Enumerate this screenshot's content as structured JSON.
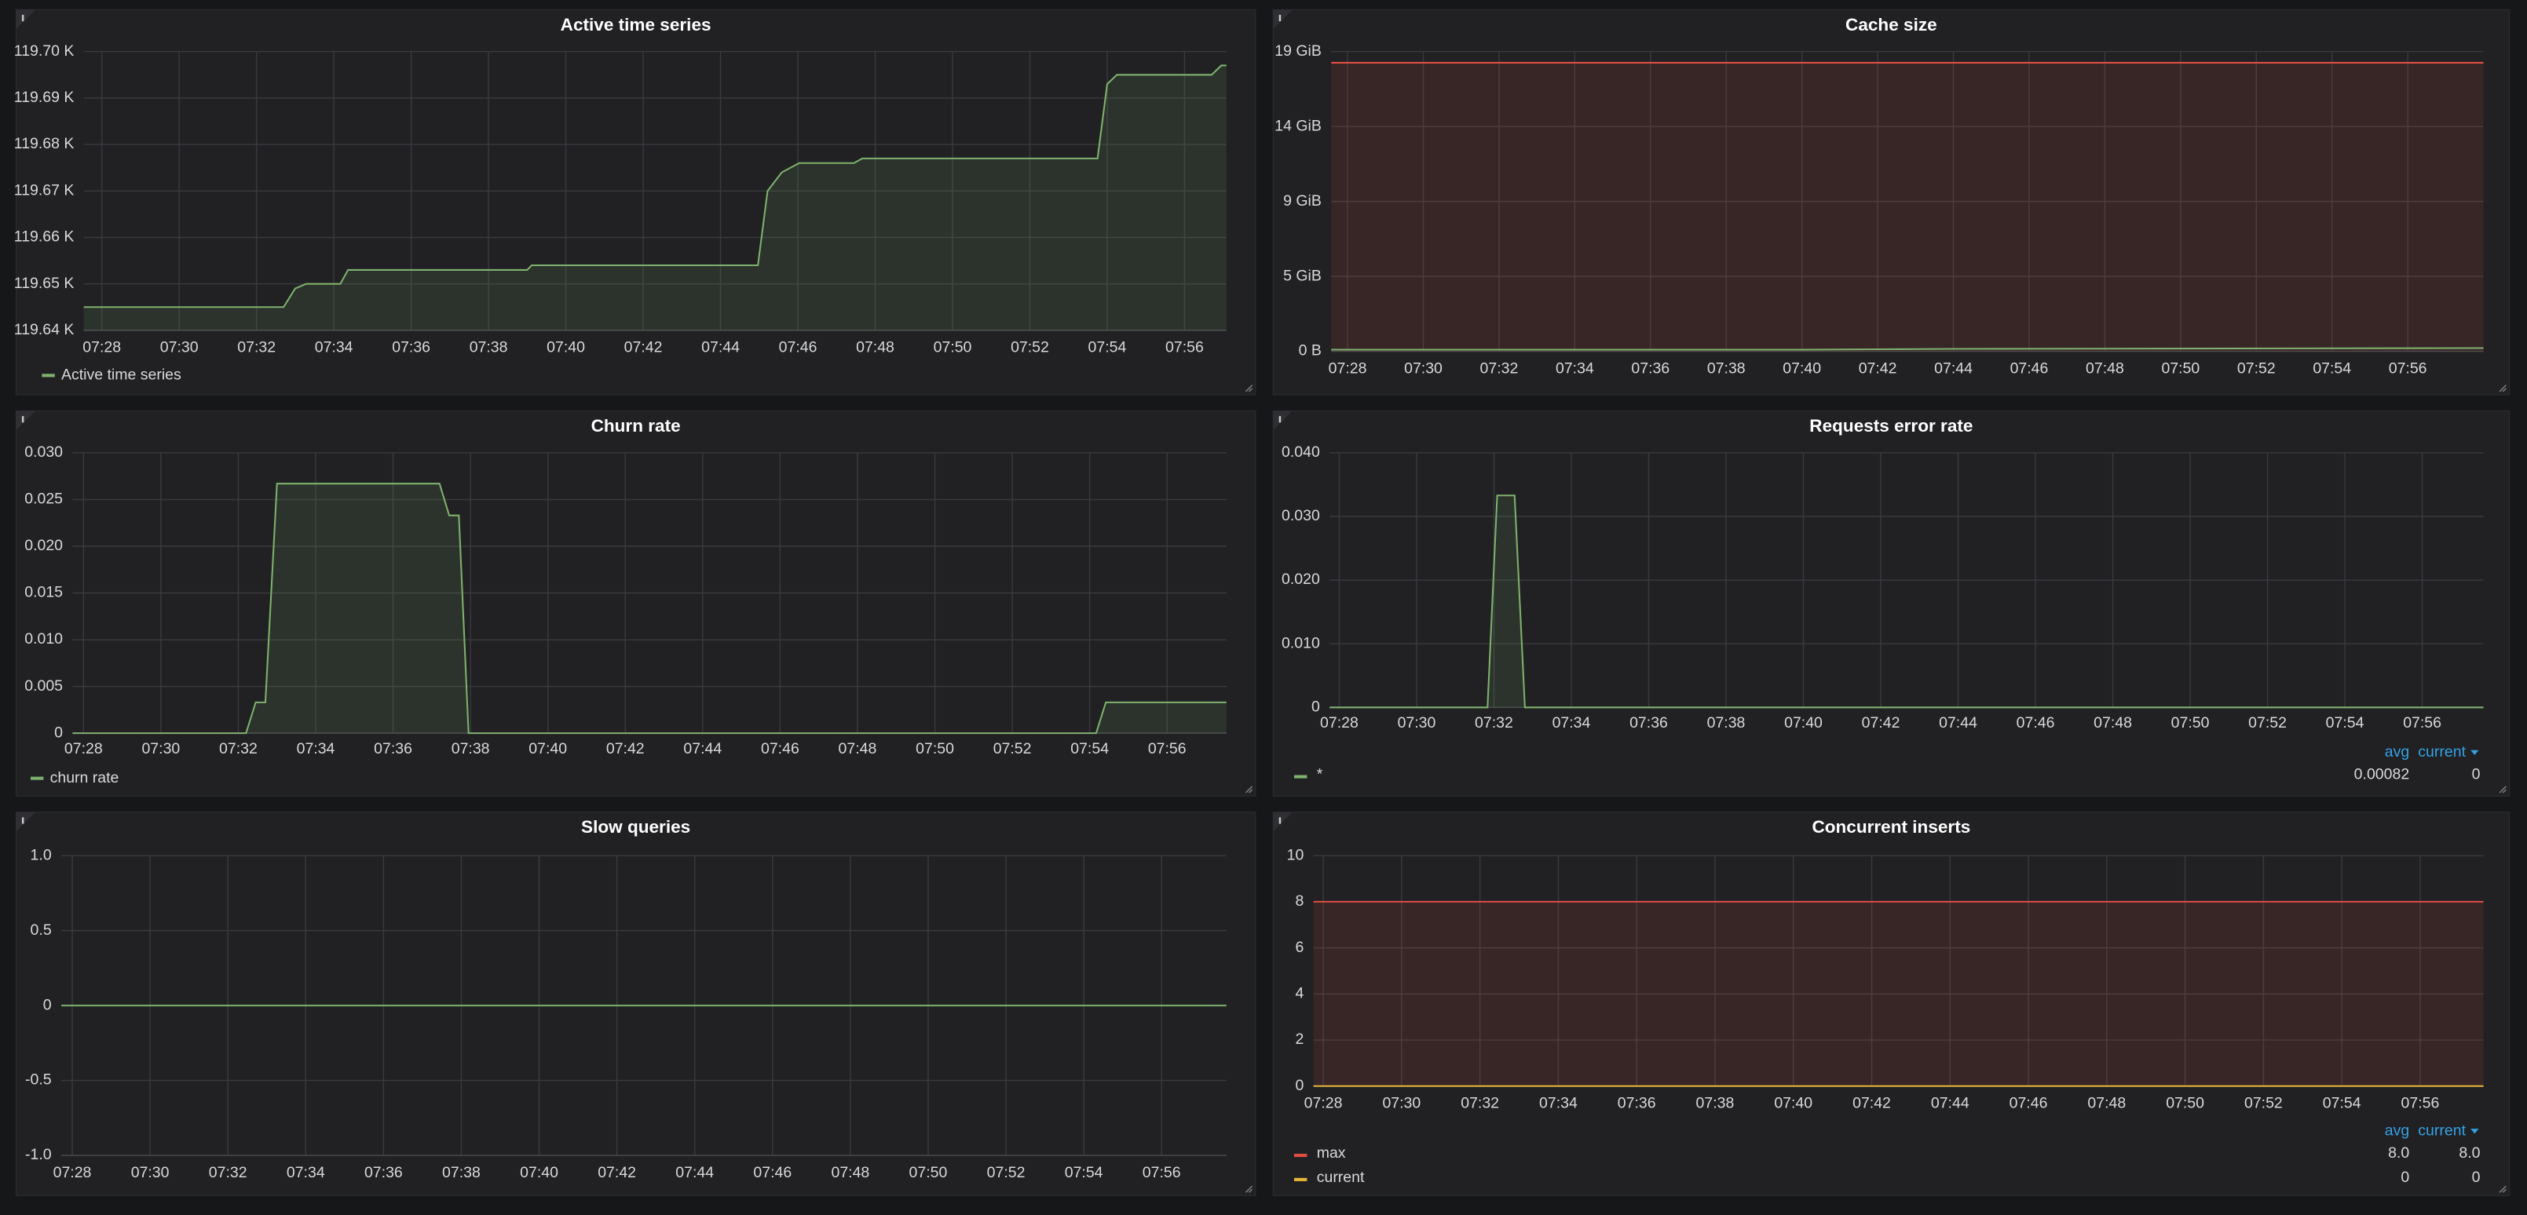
{
  "chart_data": [
    {
      "type": "line",
      "title": "Active time series",
      "xlim": [
        "07:27:32",
        "07:57:05"
      ],
      "xticks": [
        "07:28",
        "07:30",
        "07:32",
        "07:34",
        "07:36",
        "07:38",
        "07:40",
        "07:42",
        "07:44",
        "07:46",
        "07:48",
        "07:50",
        "07:52",
        "07:54",
        "07:56"
      ],
      "ylim": [
        119.64,
        119.7
      ],
      "yticks": [
        {
          "value": 119.64,
          "label": "119.64 K"
        },
        {
          "value": 119.65,
          "label": "119.65 K"
        },
        {
          "value": 119.66,
          "label": "119.66 K"
        },
        {
          "value": 119.67,
          "label": "119.67 K"
        },
        {
          "value": 119.68,
          "label": "119.68 K"
        },
        {
          "value": 119.69,
          "label": "119.69 K"
        },
        {
          "value": 119.7,
          "label": "119.70 K"
        }
      ],
      "grid": true,
      "legend": {
        "style": "list"
      },
      "series": [
        {
          "name": "Active time series",
          "color": "#7eb26d",
          "fill": true,
          "x": [
            "07:27:32",
            "07:32:42",
            "07:33:00",
            "07:33:17",
            "07:34:10",
            "07:34:22",
            "07:39:00",
            "07:39:07",
            "07:44:58",
            "07:45:13",
            "07:45:35",
            "07:46:02",
            "07:47:27",
            "07:47:40",
            "07:53:45",
            "07:54:00",
            "07:54:15",
            "07:56:42",
            "07:56:57",
            "07:57:05"
          ],
          "values": [
            119.645,
            119.645,
            119.649,
            119.65,
            119.65,
            119.653,
            119.653,
            119.654,
            119.654,
            119.67,
            119.674,
            119.676,
            119.676,
            119.677,
            119.677,
            119.693,
            119.695,
            119.695,
            119.697,
            119.697
          ]
        }
      ]
    },
    {
      "type": "line",
      "title": "Cache size",
      "xlim": [
        "07:27:34",
        "07:58:00"
      ],
      "xticks": [
        "07:28",
        "07:30",
        "07:32",
        "07:34",
        "07:36",
        "07:38",
        "07:40",
        "07:42",
        "07:44",
        "07:46",
        "07:48",
        "07:50",
        "07:52",
        "07:54",
        "07:56"
      ],
      "ylim": [
        0,
        18.8
      ],
      "yticks": [
        {
          "value": 0,
          "label": "0 B"
        },
        {
          "value": 4.7,
          "label": "5 GiB"
        },
        {
          "value": 9.4,
          "label": "9 GiB"
        },
        {
          "value": 14.1,
          "label": "14 GiB"
        },
        {
          "value": 18.8,
          "label": "19 GiB"
        }
      ],
      "grid": true,
      "series": [
        {
          "color": "#e24d42",
          "fill": true,
          "x": [
            "07:27:34",
            "07:58:00"
          ],
          "values": [
            18.1,
            18.1
          ]
        },
        {
          "color": "#7eb26d",
          "fill": false,
          "x": [
            "07:27:34",
            "07:40",
            "07:44",
            "07:58:00"
          ],
          "values": [
            0.1,
            0.1,
            0.15,
            0.2
          ]
        }
      ]
    },
    {
      "type": "line",
      "title": "Churn rate",
      "xlim": [
        "07:27:43",
        "07:57:32"
      ],
      "xticks": [
        "07:28",
        "07:30",
        "07:32",
        "07:34",
        "07:36",
        "07:38",
        "07:40",
        "07:42",
        "07:44",
        "07:46",
        "07:48",
        "07:50",
        "07:52",
        "07:54",
        "07:56"
      ],
      "ylim": [
        0,
        0.03
      ],
      "yticks": [
        0,
        0.005,
        {
          "value": 0.01,
          "label": "0.010"
        },
        0.015,
        {
          "value": 0.02,
          "label": "0.020"
        },
        0.025,
        {
          "value": 0.03,
          "label": "0.030"
        }
      ],
      "grid": true,
      "legend": {
        "style": "list"
      },
      "series": [
        {
          "name": "churn rate",
          "color": "#7eb26d",
          "fill": true,
          "x": [
            "07:27:43",
            "07:32:12",
            "07:32:27",
            "07:32:42",
            "07:33:00",
            "07:37:12",
            "07:37:27",
            "07:37:42",
            "07:37:57",
            "07:54:10",
            "07:54:25",
            "07:57:32"
          ],
          "values": [
            0,
            0,
            0.0033,
            0.0033,
            0.0267,
            0.0267,
            0.0233,
            0.0233,
            0,
            0,
            0.0033,
            0.0033
          ]
        }
      ]
    },
    {
      "type": "line",
      "title": "Requests error rate",
      "xlim": [
        "07:27:45",
        "07:57:35"
      ],
      "xticks": [
        "07:28",
        "07:30",
        "07:32",
        "07:34",
        "07:36",
        "07:38",
        "07:40",
        "07:42",
        "07:44",
        "07:46",
        "07:48",
        "07:50",
        "07:52",
        "07:54",
        "07:56"
      ],
      "ylim": [
        0,
        0.04
      ],
      "yticks": [
        0,
        {
          "value": 0.01,
          "label": "0.010"
        },
        {
          "value": 0.02,
          "label": "0.020"
        },
        {
          "value": 0.03,
          "label": "0.030"
        },
        {
          "value": 0.04,
          "label": "0.040"
        }
      ],
      "grid": true,
      "legend": {
        "style": "table",
        "columns": [
          "avg",
          "current"
        ],
        "sort": "current"
      },
      "series": [
        {
          "name": "*",
          "color": "#7eb26d",
          "fill": true,
          "stats": [
            "0.00082",
            "0"
          ],
          "x": [
            "07:27:45",
            "07:31:50",
            "07:32:05",
            "07:32:32",
            "07:32:48",
            "07:57:35"
          ],
          "values": [
            0,
            0,
            0.0333,
            0.0333,
            0,
            0
          ]
        }
      ]
    },
    {
      "type": "line",
      "title": "Slow queries",
      "xlim": [
        "07:27:43",
        "07:57:40"
      ],
      "xticks": [
        "07:28",
        "07:30",
        "07:32",
        "07:34",
        "07:36",
        "07:38",
        "07:40",
        "07:42",
        "07:44",
        "07:46",
        "07:48",
        "07:50",
        "07:52",
        "07:54",
        "07:56"
      ],
      "ylim": [
        -1,
        1
      ],
      "yticks": [
        {
          "value": -1,
          "label": "-1.0"
        },
        -0.5,
        0,
        0.5,
        {
          "value": 1,
          "label": "1.0"
        }
      ],
      "grid": true,
      "series": [
        {
          "color": "#7eb26d",
          "fill": false,
          "x": [
            "07:27:43",
            "07:57:40"
          ],
          "values": [
            0,
            0
          ]
        }
      ]
    },
    {
      "type": "line",
      "title": "Concurrent inserts",
      "xlim": [
        "07:27:45",
        "07:57:37"
      ],
      "xticks": [
        "07:28",
        "07:30",
        "07:32",
        "07:34",
        "07:36",
        "07:38",
        "07:40",
        "07:42",
        "07:44",
        "07:46",
        "07:48",
        "07:50",
        "07:52",
        "07:54",
        "07:56"
      ],
      "ylim": [
        0,
        10
      ],
      "yticks": [
        0,
        2,
        4,
        6,
        8,
        10
      ],
      "grid": true,
      "legend": {
        "style": "table",
        "columns": [
          "avg",
          "current"
        ],
        "sort": "current"
      },
      "series": [
        {
          "name": "max",
          "color": "#e24d42",
          "fill": true,
          "stats": [
            "8.0",
            "8.0"
          ],
          "x": [
            "07:27:45",
            "07:57:37"
          ],
          "values": [
            8,
            8
          ]
        },
        {
          "name": "current",
          "color": "#eab839",
          "fill": false,
          "stats": [
            "0",
            "0"
          ],
          "x": [
            "07:27:45",
            "07:57:37"
          ],
          "values": [
            0,
            0
          ]
        }
      ]
    }
  ]
}
